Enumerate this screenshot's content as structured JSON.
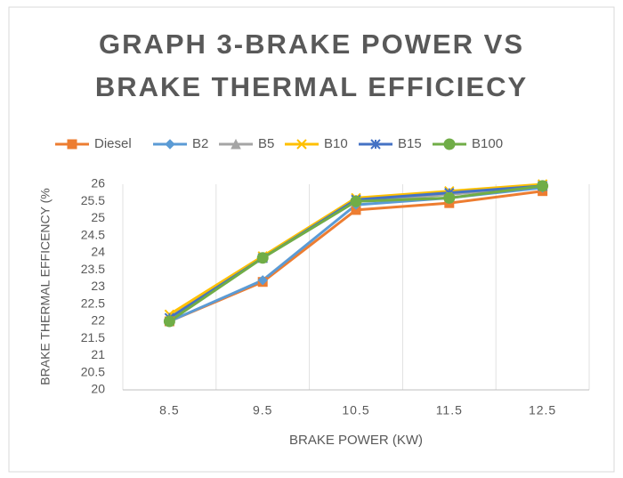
{
  "chart_data": {
    "type": "line",
    "title": [
      "GRAPH 3-BRAKE POWER VS",
      "BRAKE THERMAL EFFICIECY"
    ],
    "x_label": "BRAKE POWER (KW)",
    "y_label": "BRAKE THERMAL EFFICENCY (%",
    "categories": [
      "8.5",
      "9.5",
      "10.5",
      "11.5",
      "12.5"
    ],
    "ylim": [
      20,
      26
    ],
    "yticks": [
      20,
      20.5,
      21,
      21.5,
      22,
      22.5,
      23,
      23.5,
      24,
      24.5,
      25,
      25.5,
      26
    ],
    "grid": "x",
    "legend": "top",
    "series": [
      {
        "name": "Diesel",
        "color": "#ed7d31",
        "marker": "square",
        "values": [
          22.0,
          23.15,
          25.25,
          25.45,
          25.8
        ]
      },
      {
        "name": "B2",
        "color": "#5b9bd5",
        "marker": "diamond",
        "values": [
          22.0,
          23.2,
          25.4,
          25.6,
          25.9
        ]
      },
      {
        "name": "B5",
        "color": "#a5a5a5",
        "marker": "triangle",
        "values": [
          22.1,
          23.85,
          25.5,
          25.7,
          25.95
        ]
      },
      {
        "name": "B10",
        "color": "#ffc000",
        "marker": "x",
        "values": [
          22.2,
          23.9,
          25.6,
          25.8,
          26.0
        ]
      },
      {
        "name": "B15",
        "color": "#4472c4",
        "marker": "star",
        "values": [
          22.1,
          23.85,
          25.55,
          25.75,
          25.95
        ]
      },
      {
        "name": "B100",
        "color": "#70ad47",
        "marker": "circle",
        "values": [
          22.0,
          23.85,
          25.5,
          25.6,
          25.95
        ]
      }
    ]
  }
}
